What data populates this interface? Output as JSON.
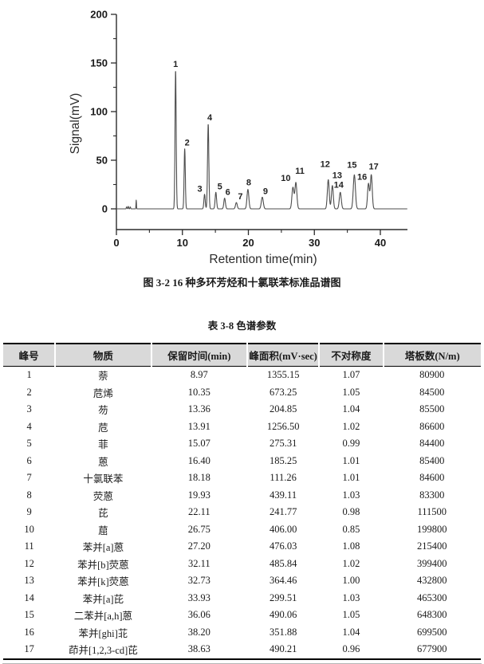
{
  "figure": {
    "caption": "图 3-2  16 种多环芳烃和十氯联苯标准品谱图"
  },
  "table": {
    "title": "表 3-8  色谱参数",
    "headers": [
      "峰号",
      "物质",
      "保留时间(min)",
      "峰面积(mV·sec)",
      "不对称度",
      "塔板数(N/m)"
    ],
    "rows": [
      [
        "1",
        "萘",
        "8.97",
        "1355.15",
        "1.07",
        "80900"
      ],
      [
        "2",
        "苊烯",
        "10.35",
        "673.25",
        "1.05",
        "84500"
      ],
      [
        "3",
        "芴",
        "13.36",
        "204.85",
        "1.04",
        "85500"
      ],
      [
        "4",
        "苊",
        "13.91",
        "1256.50",
        "1.02",
        "86600"
      ],
      [
        "5",
        "菲",
        "15.07",
        "275.31",
        "0.99",
        "84400"
      ],
      [
        "6",
        "蒽",
        "16.40",
        "185.25",
        "1.01",
        "85400"
      ],
      [
        "7",
        "十氯联苯",
        "18.18",
        "111.26",
        "1.01",
        "84600"
      ],
      [
        "8",
        "荧蒽",
        "19.93",
        "439.11",
        "1.03",
        "83300"
      ],
      [
        "9",
        "芘",
        "22.11",
        "241.77",
        "0.98",
        "111500"
      ],
      [
        "10",
        "䓛",
        "26.75",
        "406.00",
        "0.85",
        "199800"
      ],
      [
        "11",
        "苯并[a]蒽",
        "27.20",
        "476.03",
        "1.08",
        "215400"
      ],
      [
        "12",
        "苯并[b]荧蒽",
        "32.11",
        "485.84",
        "1.02",
        "399400"
      ],
      [
        "13",
        "苯并[k]荧蒽",
        "32.73",
        "364.46",
        "1.00",
        "432800"
      ],
      [
        "14",
        "苯并[a]芘",
        "33.93",
        "299.51",
        "1.03",
        "465300"
      ],
      [
        "15",
        "二苯并[a,h]蒽",
        "36.06",
        "490.06",
        "1.05",
        "648300"
      ],
      [
        "16",
        "苯并[ghi]苝",
        "38.20",
        "351.88",
        "1.04",
        "699500"
      ],
      [
        "17",
        "茚并[1,2,3-cd]芘",
        "38.63",
        "490.21",
        "0.96",
        "677900"
      ]
    ]
  },
  "chart_data": {
    "type": "line",
    "title": "",
    "xlabel": "Retention time(min)",
    "ylabel": "Signal(mV)",
    "xlim": [
      0,
      44.1
    ],
    "ylim": [
      -21,
      200
    ],
    "x_ticks": [
      0,
      10,
      20,
      30,
      40
    ],
    "x_minor_ticks": [
      5,
      15,
      25,
      35
    ],
    "y_ticks": [
      0,
      50,
      100,
      150,
      200
    ],
    "y_minor_ticks": [
      25,
      75,
      125,
      175
    ],
    "grid": false,
    "legend": "none",
    "line_color": "#4d4d4d",
    "axis_color": "#2b2b2b",
    "peaks": [
      {
        "label": "1",
        "t": 8.97,
        "h": 142,
        "sigma": 0.09,
        "label_dx": 0,
        "label_dy": 5
      },
      {
        "label": "2",
        "t": 10.35,
        "h": 62,
        "sigma": 0.09,
        "label_dx": 3,
        "label_dy": 4
      },
      {
        "label": "3",
        "t": 13.36,
        "h": 15,
        "sigma": 0.1,
        "label_dx": -6,
        "label_dy": 3
      },
      {
        "label": "4",
        "t": 13.91,
        "h": 87,
        "sigma": 0.1,
        "label_dx": 2,
        "label_dy": 5
      },
      {
        "label": "5",
        "t": 15.07,
        "h": 17,
        "sigma": 0.11,
        "label_dx": 5,
        "label_dy": 4
      },
      {
        "label": "6",
        "t": 16.4,
        "h": 11,
        "sigma": 0.12,
        "label_dx": 4,
        "label_dy": 4
      },
      {
        "label": "7",
        "t": 18.18,
        "h": 6.5,
        "sigma": 0.13,
        "label_dx": 5,
        "label_dy": 4
      },
      {
        "label": "8",
        "t": 19.93,
        "h": 20,
        "sigma": 0.14,
        "label_dx": 1,
        "label_dy": 5
      },
      {
        "label": "9",
        "t": 22.11,
        "h": 12,
        "sigma": 0.15,
        "label_dx": 4,
        "label_dy": 4
      },
      {
        "label": "10",
        "t": 26.75,
        "h": 22,
        "sigma": 0.15,
        "label_dx": -9,
        "label_dy": 8
      },
      {
        "label": "11",
        "t": 27.2,
        "h": 27,
        "sigma": 0.15,
        "label_dx": 5,
        "label_dy": 11
      },
      {
        "label": "12",
        "t": 32.11,
        "h": 30,
        "sigma": 0.14,
        "label_dx": -4,
        "label_dy": 16
      },
      {
        "label": "13",
        "t": 32.73,
        "h": 24,
        "sigma": 0.14,
        "label_dx": 6,
        "label_dy": 9
      },
      {
        "label": "14",
        "t": 33.93,
        "h": 17,
        "sigma": 0.15,
        "label_dx": -2,
        "label_dy": 6
      },
      {
        "label": "15",
        "t": 36.06,
        "h": 35,
        "sigma": 0.16,
        "label_dx": -3,
        "label_dy": 9
      },
      {
        "label": "16",
        "t": 38.2,
        "h": 26,
        "sigma": 0.14,
        "label_dx": -8,
        "label_dy": 5
      },
      {
        "label": "17",
        "t": 38.63,
        "h": 35,
        "sigma": 0.14,
        "label_dx": 3,
        "label_dy": 7
      }
    ],
    "baseline_artifacts": [
      {
        "t": 1.55,
        "h": 2,
        "sigma": 0.05
      },
      {
        "t": 1.8,
        "h": 2.5,
        "sigma": 0.05
      },
      {
        "t": 2.1,
        "h": 2,
        "sigma": 0.05
      },
      {
        "t": 3.0,
        "h": 9,
        "sigma": 0.035
      }
    ]
  }
}
